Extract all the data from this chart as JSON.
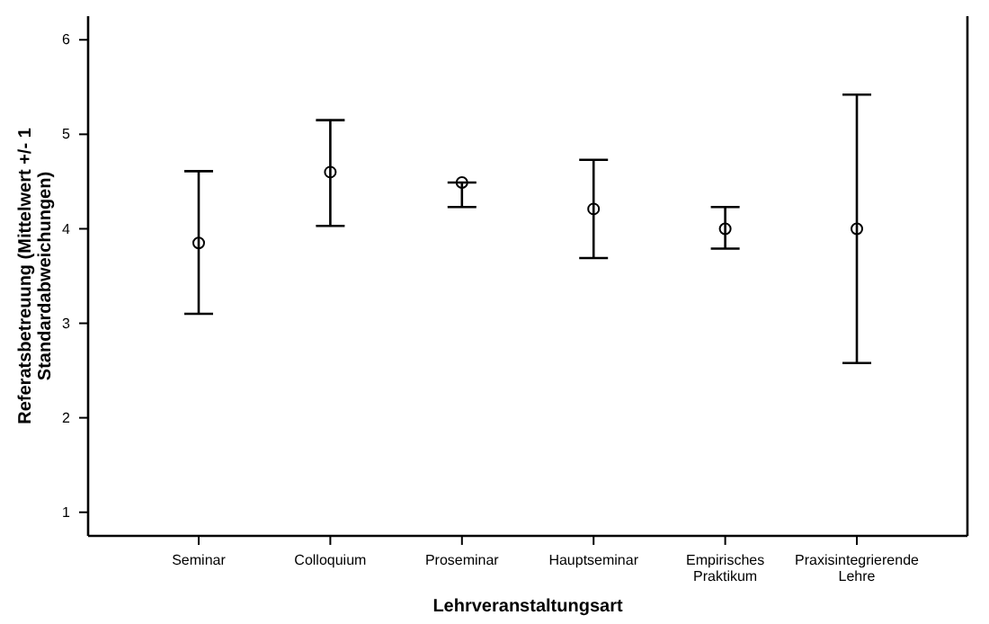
{
  "chart_data": {
    "type": "scatter",
    "xlabel": "Lehrveranstaltungsart",
    "ylabel": "Referatsbetreuung (Mittelwert +/- 1 Standardabweichungen)",
    "categories": [
      "Seminar",
      "Colloquium",
      "Proseminar",
      "Hauptseminar",
      "Empirisches Praktikum",
      "Praxisintegrierende Lehre"
    ],
    "values": [
      3.85,
      4.6,
      4.49,
      4.21,
      4.0,
      4.0
    ],
    "errors": [
      [
        3.1,
        4.61
      ],
      [
        4.03,
        5.15
      ],
      [
        4.23,
        4.49
      ],
      [
        3.69,
        4.73
      ],
      [
        3.79,
        4.23
      ],
      [
        2.58,
        5.42
      ]
    ],
    "color": "#000000",
    "marker": "circle",
    "ylim": [
      0.75,
      6.25
    ],
    "yticks": [
      1,
      2,
      3,
      4,
      5,
      6
    ]
  }
}
